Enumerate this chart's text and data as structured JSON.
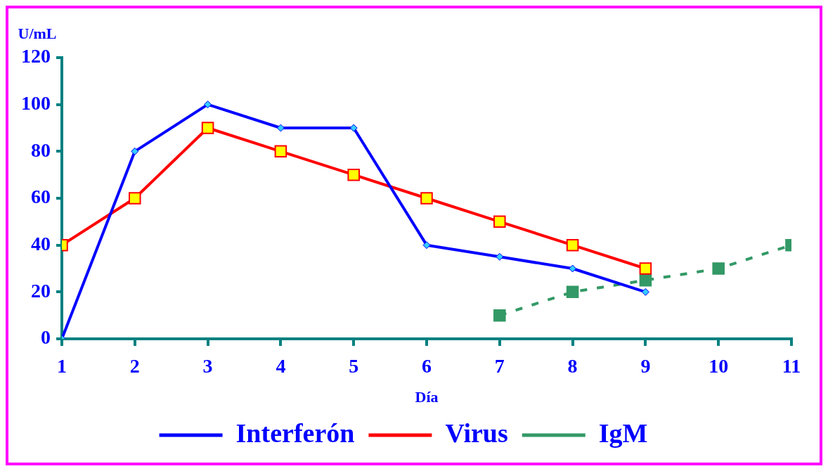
{
  "chart_data": {
    "type": "line",
    "x": [
      1,
      2,
      3,
      4,
      5,
      6,
      7,
      8,
      9
    ],
    "series": [
      {
        "name": "Interferón",
        "color": "#0000ff",
        "values": [
          0,
          80,
          100,
          90,
          90,
          40,
          35,
          30,
          20
        ],
        "marker": "diamond",
        "line_style": "solid",
        "colors": [
          "#33ccff",
          "#33ccff",
          "#33ccff",
          "#33ccff",
          "#33ccff",
          "#33ccff",
          "#33ccff",
          "#33ccff",
          "#33ccff"
        ]
      },
      {
        "name": "Virus",
        "color": "#ff0000",
        "values": [
          40,
          60,
          90,
          80,
          70,
          60,
          50,
          40,
          30
        ],
        "marker": "square",
        "line_style": "solid",
        "colors": [
          "#ffff00",
          "#ffff00",
          "#ffff00",
          "#ffff00",
          "#ffff00",
          "#ffff00",
          "#ffff00",
          "#ffff00",
          "#ffff00"
        ]
      },
      {
        "name": "IgM",
        "color": "#339966",
        "x": [
          7,
          8,
          9,
          10,
          11
        ],
        "values": [
          10,
          20,
          25,
          30,
          40
        ],
        "marker": "square",
        "line_style": "dashed"
      }
    ],
    "xlabel": "Día",
    "ylabel": "U/mL",
    "xlim": [
      1,
      11
    ],
    "xticks": [
      1,
      2,
      3,
      4,
      5,
      6,
      7,
      8,
      9,
      10,
      11
    ],
    "ylim": [
      0,
      120
    ],
    "yticks": [
      0,
      20,
      40,
      60,
      80,
      100,
      120
    ],
    "grid": false,
    "legend": "bottom"
  }
}
